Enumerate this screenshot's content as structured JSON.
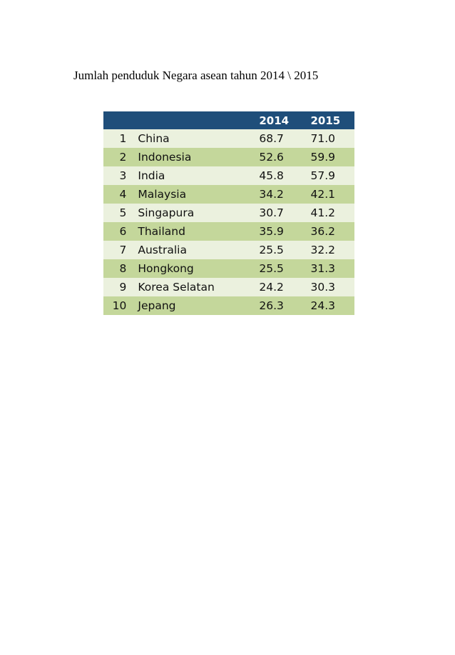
{
  "title": "Jumlah penduduk Negara asean tahun 2014 \\ 2015",
  "table": {
    "headers": [
      "",
      "",
      "2014",
      "2015"
    ],
    "rows": [
      {
        "rank": "1",
        "name": "China",
        "y2014": "68.7",
        "y2015": "71.0"
      },
      {
        "rank": "2",
        "name": "Indonesia",
        "y2014": "52.6",
        "y2015": "59.9"
      },
      {
        "rank": "3",
        "name": "India",
        "y2014": "45.8",
        "y2015": "57.9"
      },
      {
        "rank": "4",
        "name": "Malaysia",
        "y2014": "34.2",
        "y2015": "42.1"
      },
      {
        "rank": "5",
        "name": "Singapura",
        "y2014": "30.7",
        "y2015": "41.2"
      },
      {
        "rank": "6",
        "name": "Thailand",
        "y2014": "35.9",
        "y2015": "36.2"
      },
      {
        "rank": "7",
        "name": "Australia",
        "y2014": "25.5",
        "y2015": "32.2"
      },
      {
        "rank": "8",
        "name": "Hongkong",
        "y2014": "25.5",
        "y2015": "31.3"
      },
      {
        "rank": "9",
        "name": "Korea Selatan",
        "y2014": "24.2",
        "y2015": "30.3"
      },
      {
        "rank": "10",
        "name": "Jepang",
        "y2014": "26.3",
        "y2015": "24.3"
      }
    ]
  },
  "colors": {
    "header_bg": "#1f4e7a",
    "row_light": "#ebf1de",
    "row_dark": "#c4d79b"
  }
}
